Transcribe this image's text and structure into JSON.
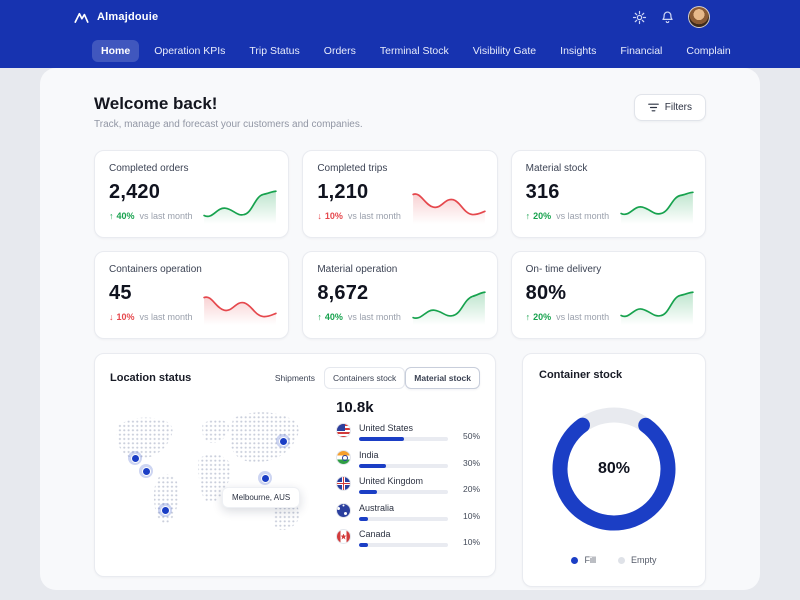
{
  "colors": {
    "brand_blue": "#1733b0",
    "accent_blue": "#1b3ec5",
    "positive_green": "#17a24e",
    "negative_red": "#e5484d"
  },
  "app": {
    "title": "Almajdouie"
  },
  "nav": {
    "items": [
      {
        "label": "Home",
        "active": true
      },
      {
        "label": "Operation KPIs",
        "active": false
      },
      {
        "label": "Trip Status",
        "active": false
      },
      {
        "label": "Orders",
        "active": false
      },
      {
        "label": "Terminal Stock",
        "active": false
      },
      {
        "label": "Visibility Gate",
        "active": false
      },
      {
        "label": "Insights",
        "active": false
      },
      {
        "label": "Financial",
        "active": false
      },
      {
        "label": "Complain",
        "active": false
      }
    ]
  },
  "header": {
    "title": "Welcome back!",
    "subtitle": "Track, manage and forecast your customers and companies.",
    "filters_label": "Filters"
  },
  "kpi_cards": [
    {
      "label": "Completed orders",
      "value": "2,420",
      "delta": "40%",
      "direction": "up",
      "suffix": "vs last month",
      "trend": "green"
    },
    {
      "label": "Completed trips",
      "value": "1,210",
      "delta": "10%",
      "direction": "down",
      "suffix": "vs last month",
      "trend": "red"
    },
    {
      "label": "Material stock",
      "value": "316",
      "delta": "20%",
      "direction": "up",
      "suffix": "vs last month",
      "trend": "green"
    },
    {
      "label": "Containers operation",
      "value": "45",
      "delta": "10%",
      "direction": "down",
      "suffix": "vs last month",
      "trend": "red"
    },
    {
      "label": "Material operation",
      "value": "8,672",
      "delta": "40%",
      "direction": "up",
      "suffix": "vs last month",
      "trend": "green"
    },
    {
      "label": "On- time delivery",
      "value": "80%",
      "delta": "20%",
      "direction": "up",
      "suffix": "vs last month",
      "trend": "green"
    }
  ],
  "location_status": {
    "title": "Location status",
    "tabs": [
      "Shipments",
      "Containers stock",
      "Material stock"
    ],
    "active_tab": "Material stock",
    "total": "10.8k",
    "map_tooltip": "Melbourne, AUS",
    "countries": [
      {
        "name": "United States",
        "percent": 50,
        "percent_label": "50%"
      },
      {
        "name": "India",
        "percent": 30,
        "percent_label": "30%"
      },
      {
        "name": "United Kingdom",
        "percent": 20,
        "percent_label": "20%"
      },
      {
        "name": "Australia",
        "percent": 10,
        "percent_label": "10%"
      },
      {
        "name": "Canada",
        "percent": 10,
        "percent_label": "10%"
      }
    ]
  },
  "container_stock": {
    "title": "Container stock",
    "percent": 80,
    "value_label": "80%",
    "legend": [
      {
        "label": "Fill",
        "color": "#1b3ec5"
      },
      {
        "label": "Empty",
        "color": "#dfe2e8"
      }
    ]
  }
}
